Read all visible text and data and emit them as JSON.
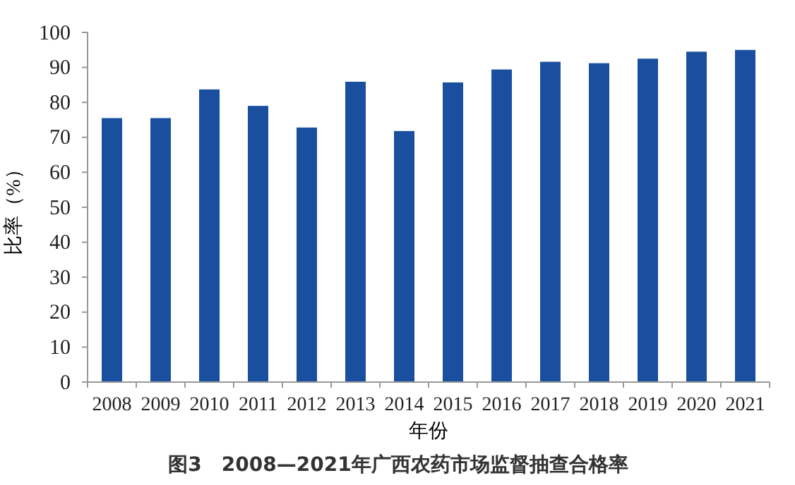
{
  "chart_data": {
    "type": "bar",
    "title": "图3　2008—2021年广西农药市场监督抽查合格率",
    "xlabel": "年份",
    "ylabel": "比率（%）",
    "categories": [
      "2008",
      "2009",
      "2010",
      "2011",
      "2012",
      "2013",
      "2014",
      "2015",
      "2016",
      "2017",
      "2018",
      "2019",
      "2020",
      "2021"
    ],
    "values": [
      75.5,
      75.5,
      83.7,
      79,
      72.8,
      85.9,
      71.8,
      85.7,
      89.4,
      91.6,
      91.2,
      92.5,
      94.5,
      95
    ],
    "color": "#1a4fa0",
    "ylim": [
      0,
      100
    ],
    "yticks": [
      0,
      10,
      20,
      30,
      40,
      50,
      60,
      70,
      80,
      90,
      100
    ],
    "grid": false
  }
}
